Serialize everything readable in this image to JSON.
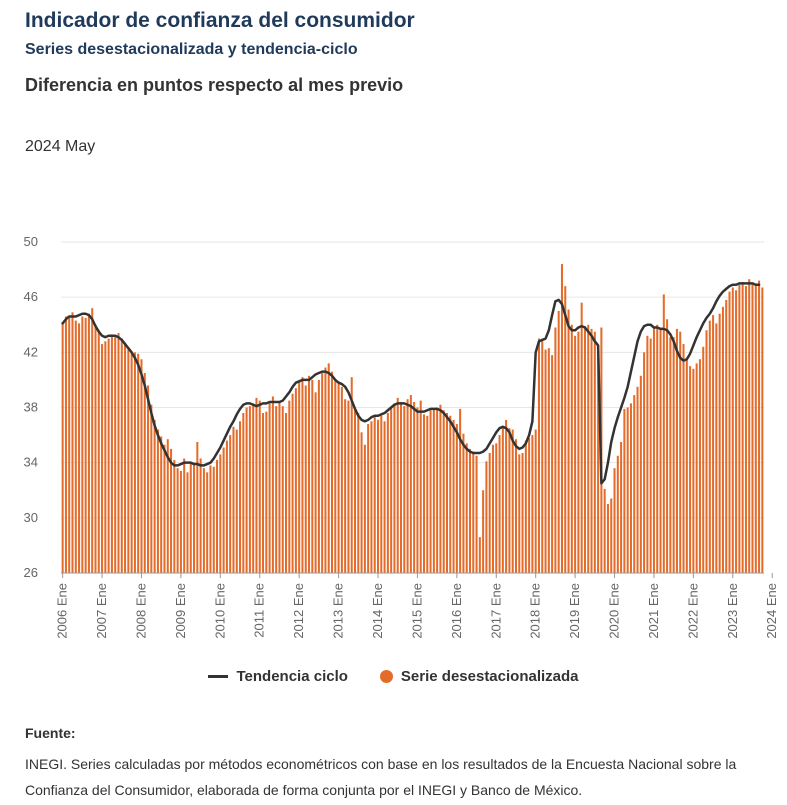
{
  "header": {
    "title": "Indicador de confianza del consumidor",
    "subtitle": "Series desestacionalizada y tendencia-ciclo",
    "heading": "Diferencia en puntos respecto al mes previo",
    "period": "2024 May"
  },
  "legend": {
    "trend_label": "Tendencia ciclo",
    "bars_label": "Serie desestacionalizada"
  },
  "source": {
    "label": "Fuente:",
    "text": "INEGI. Series calculadas por métodos econométricos con base en los resultados de la Encuesta Nacional sobre la Confianza del Consumidor, elaborada de forma conjunta por el INEGI y Banco de México."
  },
  "colors": {
    "bars": "#e36c2b",
    "trend": "#333333",
    "grid": "#e6e6e6"
  },
  "chart_data": {
    "type": "bar",
    "start": "2006-01",
    "end": "2024-05",
    "ylim": [
      26,
      50
    ],
    "yticks": [
      26,
      30,
      34,
      38,
      42,
      46,
      50
    ],
    "xticks": [
      "2006 Ene",
      "2007 Ene",
      "2008 Ene",
      "2009 Ene",
      "2010 Ene",
      "2011 Ene",
      "2012 Ene",
      "2013 Ene",
      "2014 Ene",
      "2015 Ene",
      "2016 Ene",
      "2017 Ene",
      "2018 Ene",
      "2019 Ene",
      "2020 Ene",
      "2021 Ene",
      "2022 Ene",
      "2023 Ene",
      "2024 Ene"
    ],
    "series": [
      {
        "name": "Serie desestacionalizada",
        "values": [
          44.2,
          44.6,
          44.5,
          44.9,
          44.3,
          44.1,
          44.6,
          44.5,
          44.8,
          45.2,
          44.0,
          43.6,
          42.6,
          42.8,
          43.0,
          43.3,
          43.1,
          43.4,
          43.0,
          42.7,
          42.2,
          42.0,
          42.0,
          41.9,
          41.5,
          40.5,
          39.6,
          38.2,
          37.1,
          36.4,
          35.9,
          35.3,
          35.7,
          35.0,
          34.2,
          33.6,
          33.4,
          34.3,
          33.3,
          33.9,
          34.0,
          35.5,
          34.3,
          33.6,
          33.3,
          33.8,
          33.7,
          34.2,
          34.6,
          35.1,
          35.6,
          36.0,
          36.6,
          36.4,
          37.0,
          37.6,
          38.0,
          38.1,
          38.3,
          38.7,
          38.5,
          37.6,
          37.7,
          38.3,
          38.8,
          38.1,
          38.4,
          38.1,
          37.6,
          38.5,
          39.0,
          39.4,
          39.9,
          40.2,
          39.6,
          40.3,
          40.0,
          39.1,
          40.0,
          40.5,
          40.9,
          41.2,
          40.6,
          40.0,
          39.9,
          39.5,
          38.6,
          38.5,
          40.2,
          37.9,
          37.6,
          36.2,
          35.3,
          36.8,
          37.0,
          37.4,
          37.1,
          37.4,
          37.0,
          37.6,
          38.0,
          38.3,
          38.7,
          38.4,
          38.1,
          38.6,
          38.9,
          38.4,
          38.0,
          38.5,
          37.5,
          37.4,
          37.8,
          37.9,
          38.0,
          38.2,
          37.8,
          37.6,
          37.4,
          37.1,
          36.8,
          37.9,
          36.1,
          35.4,
          35.0,
          34.8,
          34.5,
          28.6,
          32.0,
          34.1,
          34.7,
          35.3,
          35.4,
          36.0,
          36.5,
          37.1,
          36.5,
          36.4,
          35.7,
          34.6,
          34.7,
          35.6,
          35.8,
          36.0,
          36.4,
          43.0,
          42.8,
          42.2,
          42.3,
          41.8,
          43.8,
          45.0,
          48.4,
          46.8,
          45.1,
          44.0,
          43.2,
          43.5,
          45.6,
          43.9,
          44.0,
          43.7,
          43.5,
          42.4,
          43.8,
          32.1,
          31.0,
          31.4,
          33.6,
          34.5,
          35.5,
          37.9,
          38.0,
          38.3,
          38.9,
          39.5,
          40.3,
          42.0,
          43.2,
          43.0,
          43.9,
          44.0,
          43.8,
          46.2,
          44.4,
          43.1,
          43.1,
          43.7,
          43.5,
          42.6,
          41.5,
          41.0,
          40.8,
          41.2,
          41.5,
          42.4,
          43.6,
          44.3,
          44.7,
          44.1,
          44.8,
          45.3,
          45.8,
          46.4,
          46.7,
          46.5,
          46.9,
          47.1,
          46.8,
          47.3,
          47.0,
          46.9,
          47.2,
          46.7
        ]
      },
      {
        "name": "Tendencia ciclo",
        "values": [
          44.1,
          44.4,
          44.6,
          44.6,
          44.6,
          44.7,
          44.8,
          44.8,
          44.7,
          44.4,
          43.9,
          43.5,
          43.2,
          43.1,
          43.2,
          43.2,
          43.2,
          43.1,
          42.9,
          42.6,
          42.3,
          42.0,
          41.6,
          41.1,
          40.4,
          39.6,
          38.6,
          37.6,
          36.7,
          36.0,
          35.4,
          34.9,
          34.4,
          34.0,
          33.8,
          33.8,
          33.9,
          34.0,
          34.0,
          34.0,
          33.9,
          33.9,
          33.8,
          33.8,
          33.9,
          34.0,
          34.3,
          34.7,
          35.1,
          35.6,
          36.1,
          36.6,
          37.0,
          37.5,
          37.9,
          38.2,
          38.3,
          38.3,
          38.2,
          38.1,
          38.2,
          38.3,
          38.3,
          38.4,
          38.4,
          38.4,
          38.4,
          38.5,
          38.8,
          39.1,
          39.5,
          39.8,
          39.9,
          40.0,
          40.0,
          40.0,
          40.2,
          40.4,
          40.5,
          40.6,
          40.6,
          40.5,
          40.3,
          40.0,
          39.8,
          39.7,
          39.5,
          39.1,
          38.5,
          37.9,
          37.4,
          37.1,
          37.0,
          37.1,
          37.3,
          37.4,
          37.4,
          37.5,
          37.6,
          37.8,
          38.0,
          38.2,
          38.3,
          38.3,
          38.3,
          38.2,
          38.1,
          37.9,
          37.7,
          37.7,
          37.7,
          37.8,
          37.9,
          37.9,
          37.9,
          37.8,
          37.6,
          37.3,
          37.0,
          36.6,
          36.2,
          35.7,
          35.3,
          35.0,
          34.8,
          34.7,
          34.7,
          34.7,
          34.8,
          35.0,
          35.4,
          35.8,
          36.2,
          36.5,
          36.6,
          36.5,
          36.2,
          35.6,
          35.2,
          35.0,
          35.1,
          35.4,
          36.0,
          37.0,
          42.0,
          42.8,
          42.9,
          43.0,
          43.6,
          44.7,
          45.7,
          45.8,
          45.5,
          44.7,
          43.9,
          43.6,
          43.6,
          43.8,
          43.9,
          43.8,
          43.5,
          43.2,
          42.8,
          42.5,
          32.5,
          32.8,
          34.0,
          35.5,
          36.5,
          37.3,
          38.0,
          38.7,
          39.5,
          40.6,
          41.7,
          42.8,
          43.5,
          43.9,
          44.0,
          44.0,
          43.8,
          43.8,
          43.7,
          43.7,
          43.6,
          43.3,
          42.8,
          42.1,
          41.6,
          41.4,
          41.5,
          41.9,
          42.5,
          43.1,
          43.6,
          44.1,
          44.5,
          44.8,
          45.2,
          45.7,
          46.1,
          46.4,
          46.6,
          46.8,
          46.9,
          46.9,
          47.0,
          47.0,
          47.0,
          47.0,
          47.0,
          46.9,
          46.9
        ]
      }
    ]
  }
}
